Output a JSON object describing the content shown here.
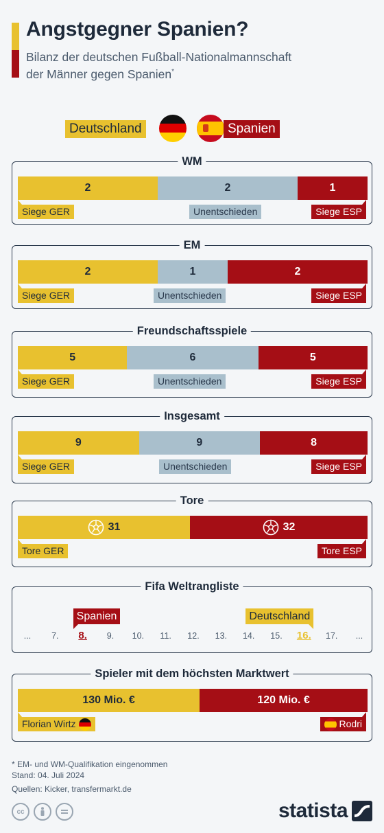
{
  "header": {
    "title": "Angstgegner Spanien?",
    "subtitle_line1": "Bilanz der deutschen Fußball-Nationalmannschaft",
    "subtitle_line2": "der Männer gegen Spanien",
    "subtitle_mark": "*"
  },
  "legend": {
    "ger": "Deutschland",
    "esp": "Spanien"
  },
  "colors": {
    "ger": "#e8c12f",
    "draw": "#a9bfcc",
    "esp": "#a50e15",
    "text": "#1e2a3a"
  },
  "labels": {
    "siege_ger": "Siege GER",
    "unentschieden": "Unentschieden",
    "siege_esp": "Siege ESP",
    "tore_ger": "Tore GER",
    "tore_esp": "Tore ESP"
  },
  "chart_data": [
    {
      "type": "bar",
      "stacked": true,
      "title": "WM",
      "categories": [
        "Siege GER",
        "Unentschieden",
        "Siege ESP"
      ],
      "values": [
        2,
        2,
        1
      ]
    },
    {
      "type": "bar",
      "stacked": true,
      "title": "EM",
      "categories": [
        "Siege GER",
        "Unentschieden",
        "Siege ESP"
      ],
      "values": [
        2,
        1,
        2
      ]
    },
    {
      "type": "bar",
      "stacked": true,
      "title": "Freundschaftsspiele",
      "categories": [
        "Siege GER",
        "Unentschieden",
        "Siege ESP"
      ],
      "values": [
        5,
        6,
        5
      ]
    },
    {
      "type": "bar",
      "stacked": true,
      "title": "Insgesamt",
      "categories": [
        "Siege GER",
        "Unentschieden",
        "Siege ESP"
      ],
      "values": [
        9,
        9,
        8
      ]
    },
    {
      "type": "bar",
      "stacked": true,
      "title": "Tore",
      "categories": [
        "Tore GER",
        "Tore ESP"
      ],
      "values": [
        31,
        32
      ]
    },
    {
      "type": "table",
      "title": "Fifa Weltrangliste",
      "ticks": [
        "...",
        "7.",
        "8.",
        "9.",
        "10.",
        "11.",
        "12.",
        "13.",
        "14.",
        "15.",
        "16.",
        "17.",
        "..."
      ],
      "rank_esp": 8,
      "rank_esp_label": "8.",
      "rank_esp_team": "Spanien",
      "rank_ger": 16,
      "rank_ger_label": "16.",
      "rank_ger_team": "Deutschland"
    },
    {
      "type": "bar",
      "stacked": true,
      "title": "Spieler mit dem höchsten Marktwert",
      "categories": [
        "Florian Wirtz",
        "Rodri"
      ],
      "values": [
        130,
        120
      ],
      "value_labels": [
        "130 Mio. €",
        "120 Mio. €"
      ]
    }
  ],
  "footer": {
    "note": "* EM- und WM-Qualifikation eingenommen",
    "date": "Stand: 04. Juli 2024",
    "sources": "Quellen: Kicker, transfermarkt.de",
    "brand": "statista"
  },
  "icons": [
    "cc-icon",
    "by-icon",
    "nd-icon",
    "soccer-ball-icon",
    "germany-flag-icon",
    "spain-flag-icon"
  ]
}
